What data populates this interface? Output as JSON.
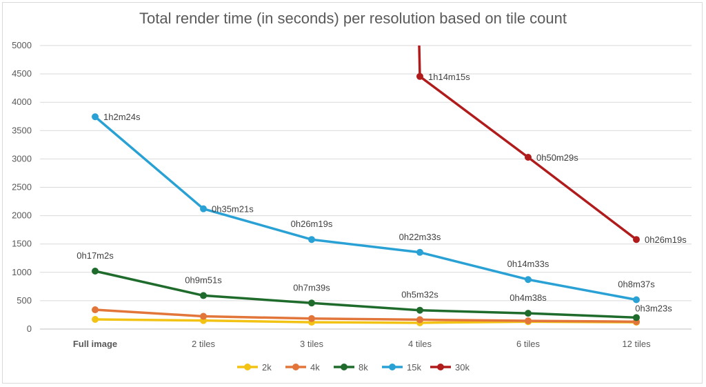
{
  "chart_data": {
    "type": "line",
    "title": "Total render time (in seconds) per resolution based on tile count",
    "categories": [
      "Full image",
      "2 tiles",
      "3 tiles",
      "4 tiles",
      "6 tiles",
      "12 tiles"
    ],
    "ylim": [
      0,
      5000
    ],
    "yticks": [
      0,
      500,
      1000,
      1500,
      2000,
      2500,
      3000,
      3500,
      4000,
      4500,
      5000
    ],
    "grid": true,
    "legend_position": "bottom",
    "series": [
      {
        "name": "2k",
        "color": "#f2c314",
        "values": [
          170,
          150,
          120,
          110,
          130,
          120
        ],
        "labels": [
          "",
          "",
          "",
          "",
          "",
          ""
        ]
      },
      {
        "name": "4k",
        "color": "#e2763a",
        "values": [
          340,
          225,
          185,
          165,
          145,
          130
        ],
        "labels": [
          "",
          "",
          "",
          "",
          "",
          ""
        ]
      },
      {
        "name": "8k",
        "color": "#1e6b2c",
        "values": [
          1022,
          591,
          459,
          332,
          278,
          203
        ],
        "labels": [
          "0h17m2s",
          "0h9m51s",
          "0h7m39s",
          "0h5m32s",
          "0h4m38s",
          "0h3m23s"
        ]
      },
      {
        "name": "15k",
        "color": "#2aa1d4",
        "values": [
          3744,
          2121,
          1579,
          1353,
          873,
          517
        ],
        "labels": [
          "1h2m24s",
          "0h35m21s",
          "0h26m19s",
          "0h22m33s",
          "0h14m33s",
          "0h8m37s"
        ]
      },
      {
        "name": "30k",
        "color": "#b01b1b",
        "values": [
          null,
          null,
          null,
          4455,
          3029,
          1579
        ],
        "labels": [
          "",
          "",
          "",
          "1h14m15s",
          "0h50m29s",
          "0h26m19s"
        ]
      }
    ]
  }
}
